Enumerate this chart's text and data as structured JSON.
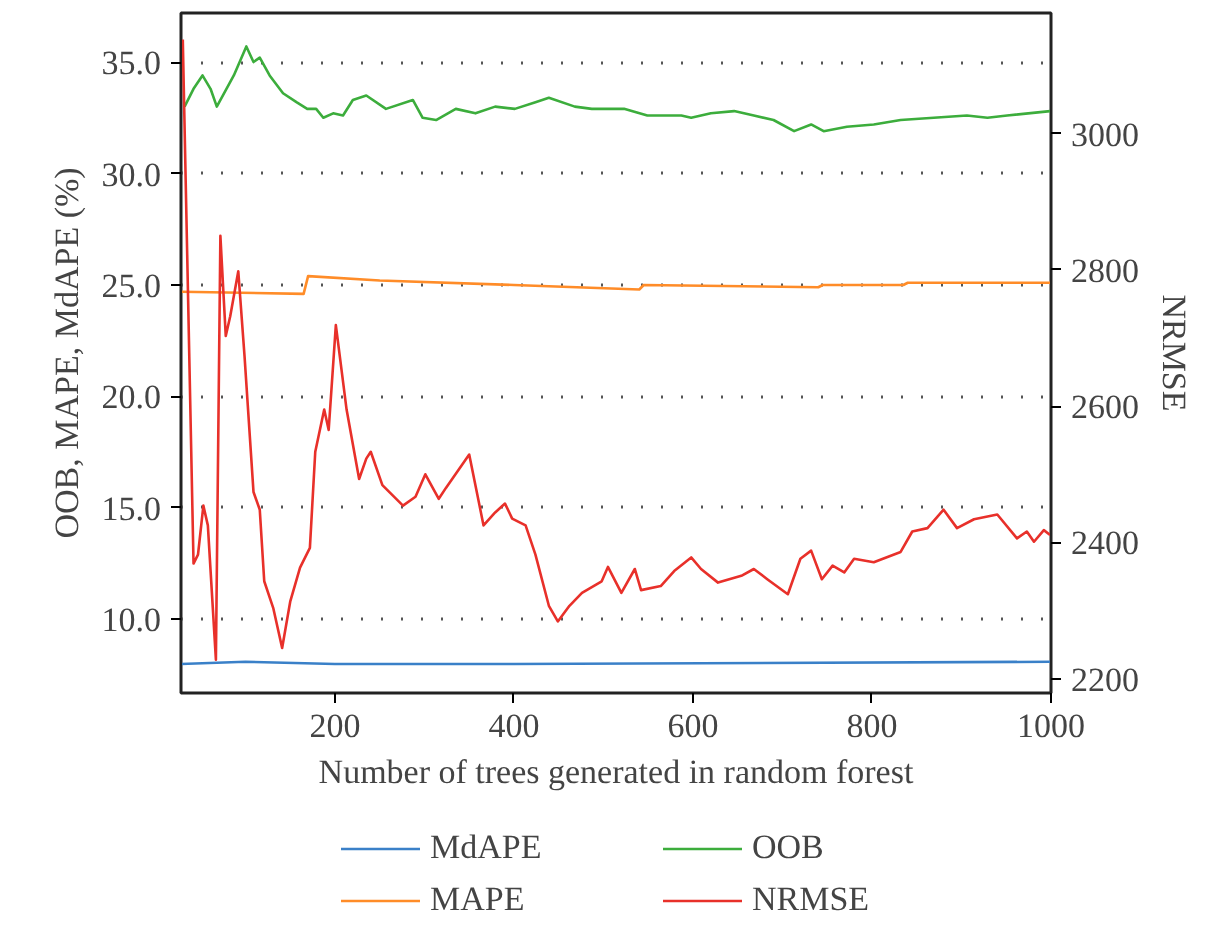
{
  "chart_data": {
    "type": "line",
    "xlabel": "Number of trees generated in random forest",
    "ylabel": "OOB, MAPE, MdAPE (%)",
    "y2label": "NRMSE",
    "xlim": [
      28,
      1000
    ],
    "xticks": [
      200,
      400,
      600,
      800,
      1000
    ],
    "ylim": [
      6.7,
      37.2
    ],
    "yticks": [
      {
        "value": 10,
        "label": "10.0"
      },
      {
        "value": 15,
        "label": "15.0"
      },
      {
        "value": 20,
        "label": "20.0"
      },
      {
        "value": 25,
        "label": "25.0"
      },
      {
        "value": 30,
        "label": "30.0"
      },
      {
        "value": 35,
        "label": "35.0"
      }
    ],
    "y2lim": [
      2179,
      3177
    ],
    "y2ticks": [
      2200,
      2400,
      2600,
      2800,
      3000
    ],
    "grid": "y",
    "legend": "bottom",
    "line_style": "solid",
    "marker": "none",
    "series": [
      {
        "name": "MdAPE",
        "color": "#3a80c8",
        "x": [
          28,
          100,
          200,
          400,
          1000
        ],
        "values": [
          8.0,
          8.1,
          8.0,
          8.0,
          8.1
        ]
      },
      {
        "name": "MAPE",
        "color": "#ff8c28",
        "x": [
          28,
          165,
          170,
          250,
          400,
          540,
          545,
          740,
          745,
          835,
          840,
          1000
        ],
        "values": [
          24.7,
          24.6,
          25.4,
          25.2,
          25.0,
          24.8,
          25.0,
          24.9,
          25.0,
          25.0,
          25.1,
          25.1
        ]
      },
      {
        "name": "OOB",
        "color": "#3cad3c",
        "x": [
          32,
          42,
          52,
          61,
          68,
          87,
          101,
          109,
          116,
          127,
          142,
          157,
          169,
          179,
          187,
          198,
          209,
          220,
          235,
          257,
          287,
          298,
          313,
          335,
          357,
          379,
          401,
          424,
          439,
          468,
          487,
          505,
          523,
          549,
          587,
          598,
          620,
          646,
          668,
          690,
          713,
          732,
          746,
          772,
          802,
          832,
          869,
          906,
          929,
          951,
          999
        ],
        "values": [
          33.0,
          33.8,
          34.4,
          33.8,
          33.0,
          34.4,
          35.7,
          35.0,
          35.2,
          34.4,
          33.6,
          33.2,
          32.9,
          32.9,
          32.5,
          32.7,
          32.6,
          33.3,
          33.5,
          32.9,
          33.3,
          32.5,
          32.4,
          32.9,
          32.7,
          33.0,
          32.9,
          33.2,
          33.4,
          33.0,
          32.9,
          32.9,
          32.9,
          32.6,
          32.6,
          32.5,
          32.7,
          32.8,
          32.6,
          32.4,
          31.9,
          32.2,
          31.9,
          32.1,
          32.2,
          32.4,
          32.5,
          32.6,
          32.5,
          32.6,
          32.8
        ]
      },
      {
        "name": "NRMSE",
        "color": "#e8302a",
        "axis": "y2",
        "x": [
          30,
          42,
          47,
          53,
          58,
          67,
          72,
          78,
          83,
          92,
          99,
          109,
          116,
          121,
          131,
          141,
          150,
          161,
          172,
          178,
          188,
          193,
          201,
          213,
          227,
          235,
          240,
          253,
          276,
          290,
          301,
          316,
          324,
          350,
          366,
          379,
          390,
          398,
          413,
          424,
          439,
          449,
          462,
          476,
          498,
          505,
          520,
          535,
          542,
          564,
          579,
          598,
          609,
          628,
          654,
          668,
          683,
          706,
          720,
          732,
          744,
          756,
          769,
          780,
          802,
          832,
          845,
          862,
          880,
          895,
          914,
          940,
          962,
          973,
          981,
          992,
          999
        ],
        "values": [
          3138,
          2369,
          2382,
          2454,
          2425,
          2228,
          2850,
          2703,
          2732,
          2798,
          2673,
          2474,
          2448,
          2343,
          2304,
          2245,
          2313,
          2363,
          2392,
          2533,
          2595,
          2565,
          2719,
          2595,
          2493,
          2523,
          2533,
          2484,
          2454,
          2467,
          2500,
          2464,
          2480,
          2529,
          2425,
          2444,
          2457,
          2435,
          2425,
          2382,
          2307,
          2284,
          2307,
          2326,
          2343,
          2364,
          2326,
          2361,
          2330,
          2336,
          2358,
          2378,
          2361,
          2341,
          2351,
          2361,
          2346,
          2324,
          2376,
          2388,
          2346,
          2366,
          2356,
          2376,
          2371,
          2386,
          2416,
          2421,
          2448,
          2421,
          2434,
          2441,
          2406,
          2416,
          2401,
          2418,
          2411
        ]
      }
    ]
  }
}
